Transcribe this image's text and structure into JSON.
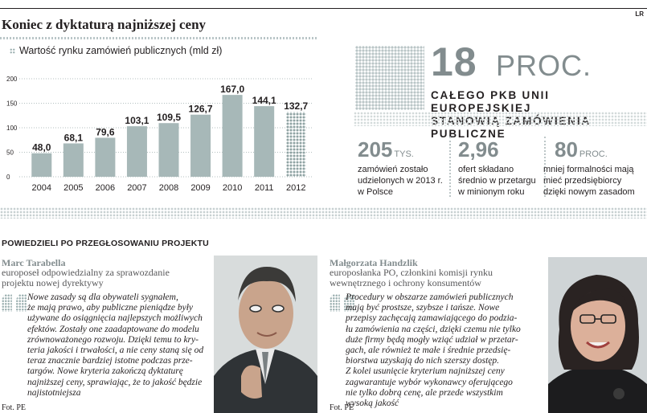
{
  "header": {
    "corner_mark": "LR",
    "title": "Koniec z dyktaturą najniższej ceny"
  },
  "chart_data": {
    "type": "bar",
    "title": "Wartość rynku zamówień publicznych (mld zł)",
    "categories": [
      "2004",
      "2005",
      "2006",
      "2007",
      "2008",
      "2009",
      "2010",
      "2011",
      "2012"
    ],
    "values": [
      48.0,
      68.1,
      79.6,
      103.1,
      109.5,
      126.7,
      167.0,
      144.1,
      132.7
    ],
    "value_labels": [
      "48,0",
      "68,1",
      "79,6",
      "103,1",
      "109,5",
      "126,7",
      "167,0",
      "144,1",
      "132,7"
    ],
    "yticks": [
      0,
      50,
      100,
      150,
      200
    ],
    "ylim": [
      0,
      200
    ],
    "xlabel": "",
    "ylabel": "",
    "forecast_category": "2012",
    "colors": {
      "bar": "#a7b8b8",
      "forecast": "#8fa3a3",
      "text": "#231f20"
    }
  },
  "headline_stat": {
    "number": "18",
    "unit": "PROC.",
    "caption_line1": "całego PKB Unii Europejskiej",
    "caption_line2": "stanowią zamówienia publiczne"
  },
  "stats": [
    {
      "number": "205",
      "unit": "TYS.",
      "description": [
        "zamówień zostało",
        "udzielonych w 2013 r.",
        "w Polsce"
      ]
    },
    {
      "number": "2,96",
      "unit": "",
      "description": [
        "ofert składano",
        "średnio w przetargu",
        "w minionym roku"
      ]
    },
    {
      "number": "80",
      "unit": "PROC.",
      "description": [
        "mniej formalności mają",
        "mieć przedsiębiorcy",
        "dzięki nowym zasadom"
      ]
    }
  ],
  "section": {
    "title": "POWIEDZIELI PO PRZEGŁOSOWANIU PROJEKTU"
  },
  "people": [
    {
      "name": "Marc Tarabella",
      "role": [
        "europoseł odpowiedzialny za sprawozdanie",
        "projektu nowej dyrektywy"
      ],
      "quote": [
        "Nowe zasady są dla obywateli sygnałem,",
        "że mają prawo, aby publiczne pieniądze były",
        "używane do osiągnięcia najlepszych możliwych",
        "efektów. Zostały one zaadaptowane do modelu",
        "zrównoważonego rozwoju. Dzięki temu to kry-",
        "teria jakości i trwałości, a nie ceny staną się od",
        "teraz znacznie bardziej istotne podczas prze-",
        "targów. Nowe kryteria zakończą dyktaturę",
        "najniższej ceny, sprawiając, że to jakość będzie",
        "najistotniejsza"
      ],
      "credit": "Fot. PE"
    },
    {
      "name": "Małgorzata Handzlik",
      "role": [
        "europosłanka PO, członkini komisji rynku",
        "wewnętrznego i ochrony konsumentów"
      ],
      "quote": [
        "Procedury w obszarze zamówień publicznych",
        "mają być prostsze, szybsze i tańsze. Nowe",
        "przepisy zachęcają zamawiającego do podzia-",
        "łu zamówienia na części, dzięki czemu nie tylko",
        "duże firmy będą mogły wziąć udział w przetar-",
        "gach, ale również te małe i średnie przedsię-",
        "biorstwa uzyskają do nich szerszy dostęp.",
        "Z kolei usunięcie kryterium najniższej ceny",
        "zagwarantuje wybór wykonawcy oferującego",
        "nie tylko dobrą cenę, ale przede wszystkim",
        "wysoką jakość"
      ],
      "credit": "Fot. PE"
    }
  ]
}
